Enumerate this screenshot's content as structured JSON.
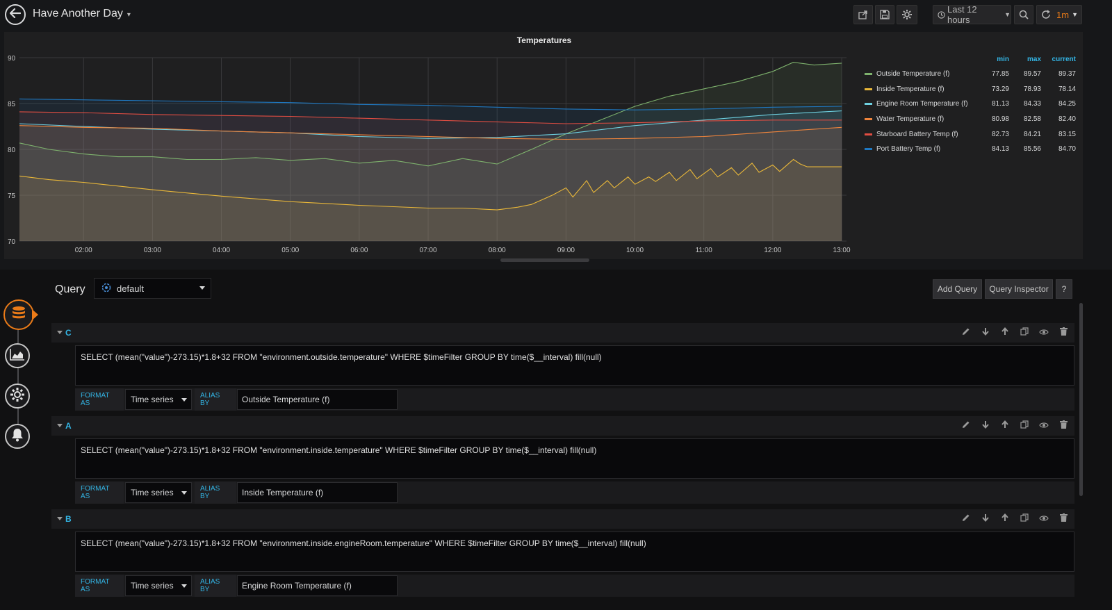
{
  "navbar": {
    "title": "Have Another Day",
    "time_range": "Last 12 hours",
    "refresh_interval": "1m"
  },
  "panel": {
    "title": "Temperatures"
  },
  "legend": {
    "headers": [
      "min",
      "max",
      "current"
    ],
    "items": [
      {
        "name": "Outside Temperature (f)",
        "color": "#7eb26d",
        "min": "77.85",
        "max": "89.57",
        "current": "89.37"
      },
      {
        "name": "Inside Temperature (f)",
        "color": "#eab839",
        "min": "73.29",
        "max": "78.93",
        "current": "78.14"
      },
      {
        "name": "Engine Room Temperature (f)",
        "color": "#6ed0e0",
        "min": "81.13",
        "max": "84.33",
        "current": "84.25"
      },
      {
        "name": "Water Temperature (f)",
        "color": "#ef843c",
        "min": "80.98",
        "max": "82.58",
        "current": "82.40"
      },
      {
        "name": "Starboard Battery Temp (f)",
        "color": "#e24d42",
        "min": "82.73",
        "max": "84.21",
        "current": "83.15"
      },
      {
        "name": "Port Battery Temp (f)",
        "color": "#1f78c1",
        "min": "84.13",
        "max": "85.56",
        "current": "84.70"
      }
    ]
  },
  "chart_data": {
    "type": "line",
    "title": "Temperatures",
    "ylim": [
      70,
      90
    ],
    "y_ticks": [
      "70",
      "75",
      "80",
      "85",
      "90"
    ],
    "x_ticks": [
      "02:00",
      "03:00",
      "04:00",
      "05:00",
      "06:00",
      "07:00",
      "08:00",
      "09:00",
      "10:00",
      "11:00",
      "12:00",
      "13:00"
    ],
    "xlim": [
      1.07,
      13.07
    ],
    "fill": true,
    "series": [
      {
        "name": "Outside Temperature (f)",
        "color": "#7eb26d",
        "x": [
          1.07,
          1.5,
          2.0,
          2.5,
          3.0,
          3.5,
          4.0,
          4.5,
          5.0,
          5.5,
          6.0,
          6.5,
          7.0,
          7.5,
          8.0,
          8.5,
          9.0,
          9.5,
          10.0,
          10.5,
          11.0,
          11.5,
          12.0,
          12.3,
          12.6,
          13.0
        ],
        "y": [
          80.7,
          80.0,
          79.5,
          79.2,
          79.2,
          78.9,
          78.9,
          79.1,
          78.8,
          79.0,
          78.5,
          78.8,
          78.2,
          79.0,
          78.4,
          80.0,
          81.7,
          83.2,
          84.7,
          85.8,
          86.6,
          87.4,
          88.5,
          89.5,
          89.2,
          89.4
        ]
      },
      {
        "name": "Inside Temperature (f)",
        "color": "#eab839",
        "x": [
          1.07,
          1.5,
          2.0,
          3.0,
          4.0,
          5.0,
          6.0,
          7.0,
          7.5,
          8.0,
          8.3,
          8.5,
          8.8,
          9.0,
          9.1,
          9.3,
          9.4,
          9.6,
          9.7,
          9.9,
          10.0,
          10.2,
          10.3,
          10.5,
          10.6,
          10.8,
          10.9,
          11.1,
          11.2,
          11.4,
          11.5,
          11.7,
          11.8,
          12.0,
          12.1,
          12.3,
          12.4,
          12.5,
          13.0
        ],
        "y": [
          77.1,
          76.7,
          76.4,
          75.6,
          74.9,
          74.3,
          73.9,
          73.6,
          73.6,
          73.4,
          73.7,
          74.0,
          75.0,
          75.8,
          74.8,
          76.6,
          75.3,
          76.6,
          75.8,
          77.0,
          76.2,
          77.0,
          76.5,
          77.5,
          76.6,
          77.8,
          76.8,
          77.9,
          77.0,
          78.0,
          77.2,
          78.5,
          77.5,
          78.3,
          77.6,
          78.9,
          78.4,
          78.1,
          78.1
        ]
      },
      {
        "name": "Engine Room Temperature (f)",
        "color": "#6ed0e0",
        "x": [
          1.07,
          2.0,
          3.0,
          4.0,
          5.0,
          6.0,
          7.0,
          8.0,
          9.0,
          10.0,
          11.0,
          12.0,
          13.0
        ],
        "y": [
          82.8,
          82.5,
          82.2,
          82.0,
          81.8,
          81.4,
          81.2,
          81.3,
          81.7,
          82.6,
          83.2,
          83.8,
          84.2
        ]
      },
      {
        "name": "Water Temperature (f)",
        "color": "#ef843c",
        "x": [
          1.07,
          2.0,
          3.0,
          4.0,
          5.0,
          6.0,
          7.0,
          8.0,
          9.0,
          10.0,
          11.0,
          12.0,
          13.0
        ],
        "y": [
          82.6,
          82.4,
          82.3,
          82.0,
          81.8,
          81.6,
          81.4,
          81.2,
          81.1,
          81.2,
          81.4,
          81.9,
          82.4
        ]
      },
      {
        "name": "Starboard Battery Temp (f)",
        "color": "#e24d42",
        "x": [
          1.07,
          2.0,
          3.0,
          4.0,
          5.0,
          6.0,
          7.0,
          8.0,
          9.0,
          10.0,
          11.0,
          12.0,
          13.0
        ],
        "y": [
          84.1,
          84.0,
          83.8,
          83.7,
          83.6,
          83.4,
          83.2,
          83.0,
          82.8,
          82.9,
          83.1,
          83.2,
          83.2
        ]
      },
      {
        "name": "Port Battery Temp (f)",
        "color": "#1f78c1",
        "x": [
          1.07,
          2.0,
          3.0,
          4.0,
          5.0,
          6.0,
          7.0,
          8.0,
          9.0,
          10.0,
          11.0,
          12.0,
          13.0
        ],
        "y": [
          85.5,
          85.4,
          85.3,
          85.2,
          85.1,
          84.9,
          84.8,
          84.6,
          84.4,
          84.3,
          84.4,
          84.6,
          84.7
        ]
      }
    ]
  },
  "query_editor": {
    "label": "Query",
    "datasource": "default",
    "add_query": "Add Query",
    "query_inspector": "Query Inspector",
    "help": "?",
    "format_as_label": "FORMAT AS",
    "alias_by_label": "ALIAS BY",
    "queries": [
      {
        "ref": "C",
        "text": "SELECT (mean(\"value\")-273.15)*1.8+32 FROM \"environment.outside.temperature\" WHERE $timeFilter GROUP BY time($__interval) fill(null)",
        "format": "Time series",
        "alias": "Outside Temperature (f)"
      },
      {
        "ref": "A",
        "text": "SELECT (mean(\"value\")-273.15)*1.8+32 FROM  \"environment.inside.temperature\" WHERE $timeFilter GROUP BY time($__interval) fill(null)",
        "format": "Time series",
        "alias": "Inside Temperature (f)"
      },
      {
        "ref": "B",
        "text": "SELECT (mean(\"value\")-273.15)*1.8+32 FROM \"environment.inside.engineRoom.temperature\" WHERE $timeFilter GROUP BY time($__interval) fill(null)",
        "format": "Time series",
        "alias": "Engine Room Temperature (f)"
      }
    ]
  }
}
